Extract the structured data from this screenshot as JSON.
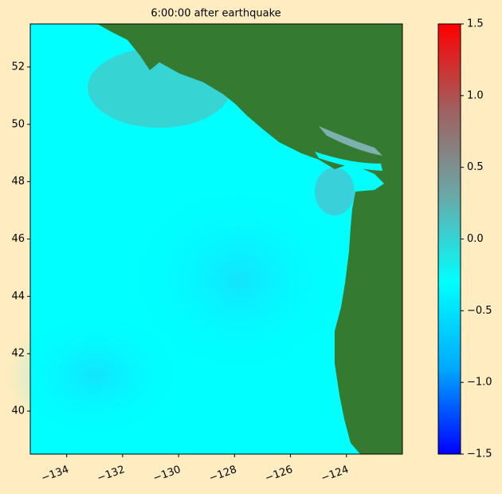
{
  "chart_data": {
    "type": "heatmap",
    "title": "6:00:00 after earthquake",
    "xlim": [
      -135.3,
      -122.0
    ],
    "xticks": [
      {
        "value": -134,
        "label": "−134"
      },
      {
        "value": -132,
        "label": "−132"
      },
      {
        "value": -130,
        "label": "−130"
      },
      {
        "value": -128,
        "label": "−128"
      },
      {
        "value": -126,
        "label": "−126"
      },
      {
        "value": -124,
        "label": "−124"
      }
    ],
    "ylim": [
      38.5,
      53.5
    ],
    "yticks": [
      40,
      42,
      44,
      46,
      48,
      50,
      52
    ],
    "colorbar_lim": [
      -1.5,
      1.5
    ],
    "colorbar_ticks": [
      {
        "value": -1.5,
        "label": "−1.5"
      },
      {
        "value": -1.0,
        "label": "−1.0"
      },
      {
        "value": -0.5,
        "label": "−0.5"
      },
      {
        "value": 0.0,
        "label": "0.0"
      },
      0.5,
      {
        "value": 1.0,
        "label": "1.0"
      },
      1.5
    ],
    "colorbar_colors": [
      "#0000ff",
      "#00aaff",
      "#00ffff",
      "#6aa8a8",
      "#a06060",
      "#ff0000"
    ],
    "ocean_color": "#00ffff",
    "land_color": "#357a31"
  }
}
